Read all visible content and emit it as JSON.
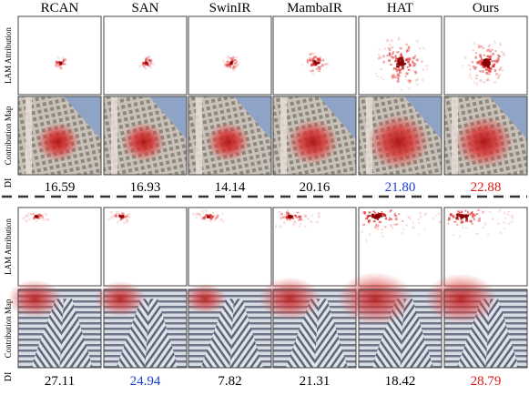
{
  "columns": [
    "RCAN",
    "SAN",
    "SwinIR",
    "MambaIR",
    "HAT",
    "Ours"
  ],
  "row_labels": [
    "LAM Attribution",
    "Contribution Map",
    "DI"
  ],
  "groups": [
    {
      "di": [
        "16.59",
        "16.93",
        "14.14",
        "20.16",
        "21.80",
        "22.88"
      ],
      "di_colors": [
        "#000000",
        "#000000",
        "#000000",
        "#000000",
        "#1a3fd6",
        "#e01818"
      ]
    },
    {
      "di": [
        "27.11",
        "24.94",
        "7.82",
        "21.31",
        "18.42",
        "28.79"
      ],
      "di_colors": [
        "#000000",
        "#1a3fd6",
        "#000000",
        "#000000",
        "#000000",
        "#e01818"
      ]
    }
  ]
}
